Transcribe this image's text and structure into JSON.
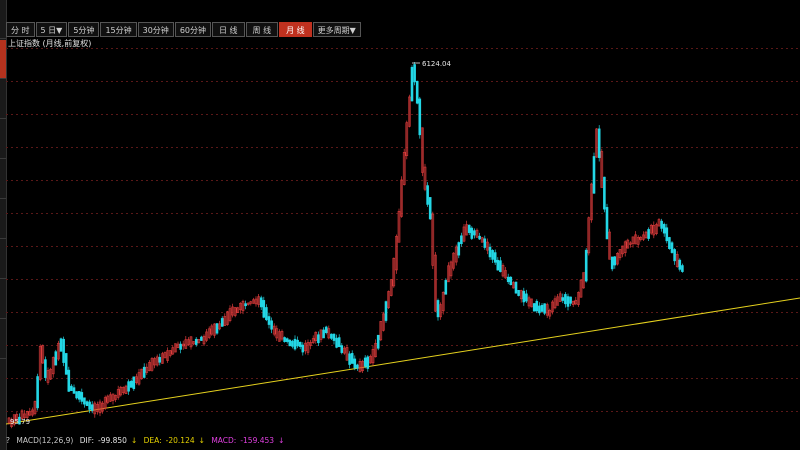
{
  "toolbar": {
    "buttons": [
      {
        "label": "分 时",
        "active": false
      },
      {
        "label": "5 日▼",
        "active": false
      },
      {
        "label": "5分钟",
        "active": false
      },
      {
        "label": "15分钟",
        "active": false
      },
      {
        "label": "30分钟",
        "active": false
      },
      {
        "label": "60分钟",
        "active": false
      },
      {
        "label": "日 线",
        "active": false
      },
      {
        "label": "周 线",
        "active": false
      },
      {
        "label": "月 线",
        "active": true
      },
      {
        "label": "更多周期▼",
        "active": false
      }
    ]
  },
  "title": "上证指数 (月线,前复权)",
  "chart": {
    "high_label": "6124.04",
    "low_label": "95.79",
    "colors": {
      "up": "#e03c3c",
      "down": "#23d7e6",
      "trend": "#e6d21e",
      "grid": "#5a1818"
    }
  },
  "macd": {
    "params": "MACD(12,26,9)",
    "dif_label": "DIF:",
    "dif_value": "-99.850",
    "dea_label": "DEA:",
    "dea_value": "-20.124",
    "macd_label": "MACD:",
    "macd_value": "-159.453",
    "arrow": "↓"
  }
}
